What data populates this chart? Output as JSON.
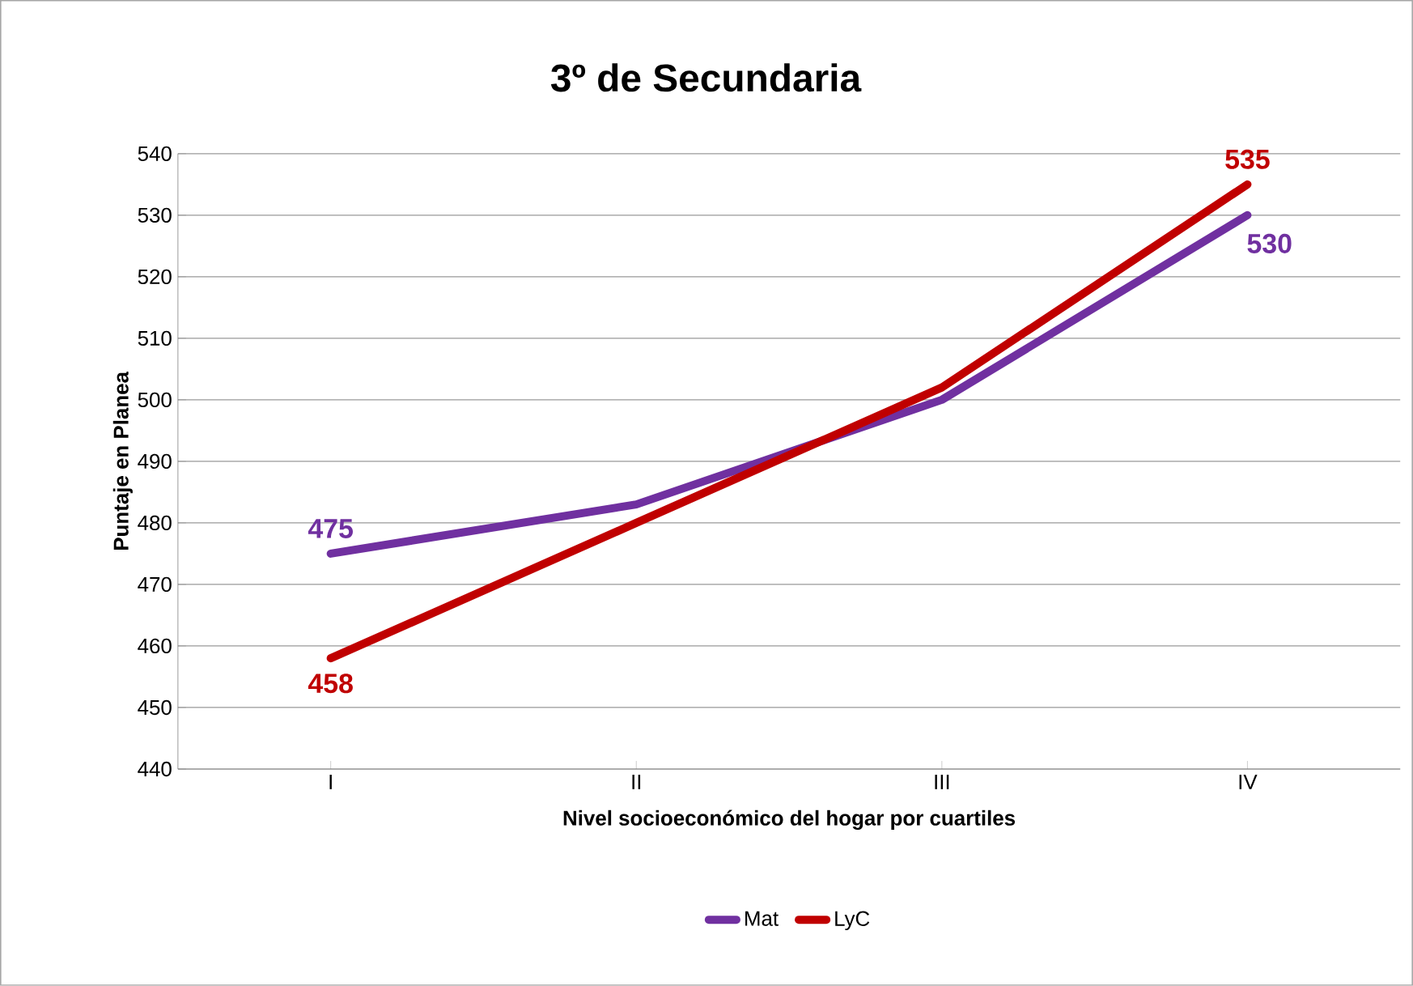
{
  "chart_data": {
    "type": "line",
    "title": "3º de Secundaria",
    "xlabel": "Nivel socioeconómico del hogar por cuartiles",
    "ylabel": "Puntaje en Planea",
    "categories": [
      "I",
      "II",
      "III",
      "IV"
    ],
    "series": [
      {
        "name": "Mat",
        "color": "#7030a0",
        "values": [
          475,
          483,
          500,
          530
        ],
        "value_labels": [
          "475",
          null,
          null,
          "530"
        ]
      },
      {
        "name": "LyC",
        "color": "#c00000",
        "values": [
          458,
          480,
          502,
          535
        ],
        "value_labels": [
          "458",
          null,
          null,
          "535"
        ]
      }
    ],
    "ylim": [
      440,
      540
    ],
    "yticks": [
      440,
      450,
      460,
      470,
      480,
      490,
      500,
      510,
      520,
      530,
      540
    ],
    "grid": "y",
    "legend": "bottom",
    "marker": "none",
    "line_style": "solid"
  }
}
